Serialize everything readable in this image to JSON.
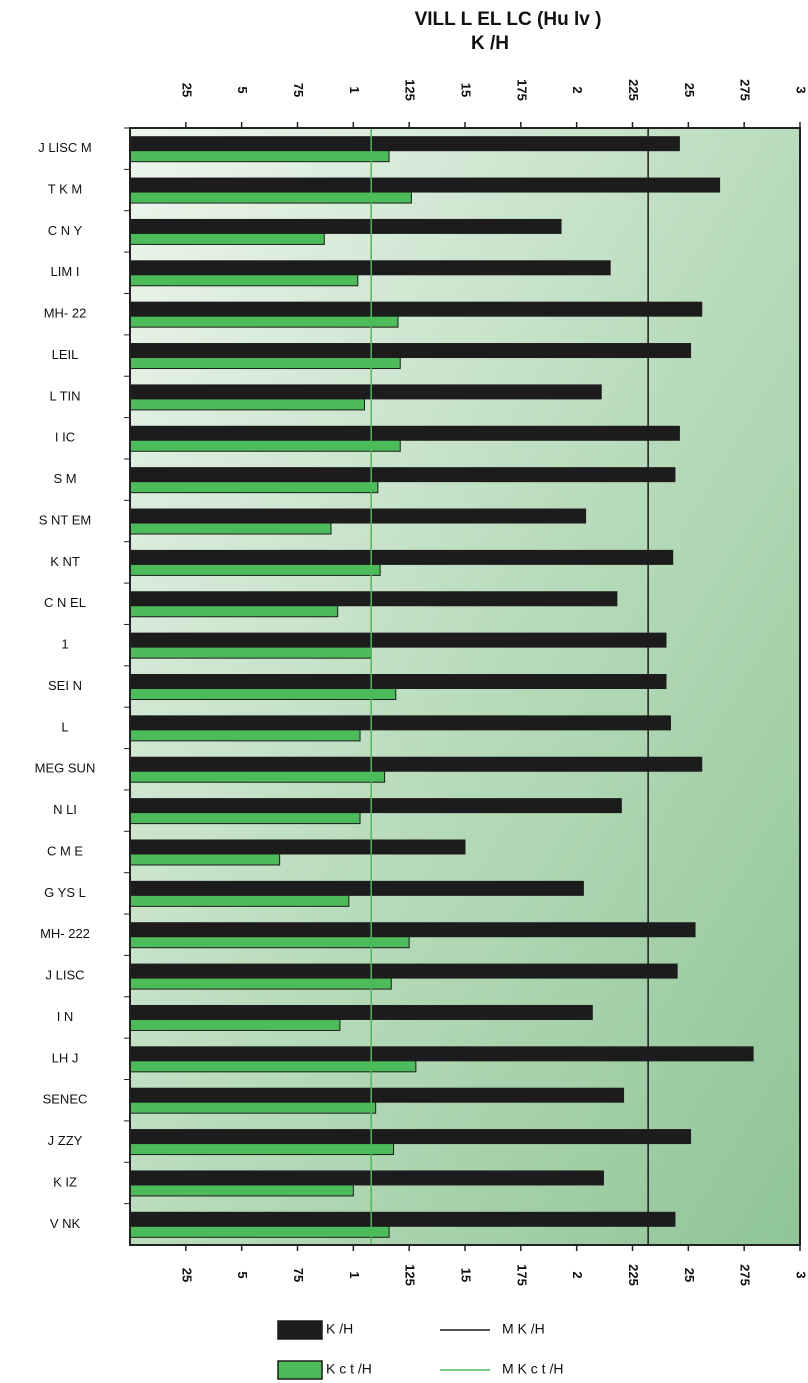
{
  "chart_data": {
    "type": "bar",
    "orientation": "horizontal",
    "title": "VILL  L      EL  LC     (Hu lv )",
    "subtitle": "K  /H",
    "categories": [
      "J LISC M",
      "T K M",
      "C N Y",
      "LIM I",
      "MH- 22",
      "LEIL",
      "L TIN",
      "I IC",
      "S M",
      "S NT EM",
      "K NT",
      "C N EL",
      "1",
      "SEI N",
      "L",
      "MEG SUN",
      "N LI",
      "C M E",
      "G YS L",
      "MH- 222",
      "J LISC",
      "I N",
      "LH J",
      "SENEC",
      "J ZZY",
      "K IZ",
      "V NK"
    ],
    "series": [
      {
        "name": "K /H",
        "color": "#1c1c1c",
        "values": [
          2.46,
          2.64,
          1.93,
          2.15,
          2.56,
          2.51,
          2.11,
          2.46,
          2.44,
          2.04,
          2.43,
          2.18,
          2.4,
          2.4,
          2.42,
          2.56,
          2.2,
          1.5,
          2.03,
          2.53,
          2.45,
          2.07,
          2.79,
          2.21,
          2.51,
          2.12,
          2.44
        ]
      },
      {
        "name": "K  c t /H",
        "color": "#4cbb5a",
        "values": [
          1.16,
          1.26,
          0.87,
          1.02,
          1.2,
          1.21,
          1.05,
          1.21,
          1.11,
          0.9,
          1.12,
          0.93,
          1.08,
          1.19,
          1.03,
          1.14,
          1.03,
          0.67,
          0.98,
          1.25,
          1.17,
          0.94,
          1.28,
          1.1,
          1.18,
          1.0,
          1.16
        ]
      }
    ],
    "mean_lines": [
      {
        "name": "M   K /H",
        "value": 2.32,
        "color": "#1c1c1c"
      },
      {
        "name": "M   K  c t /H",
        "value": 1.08,
        "color": "#4cbb5a"
      }
    ],
    "xlim": [
      0,
      3
    ],
    "xticks": [
      {
        "value": 0.25,
        "label": "25"
      },
      {
        "value": 0.5,
        "label": "5"
      },
      {
        "value": 0.75,
        "label": "75"
      },
      1,
      {
        "value": 1.25,
        "label": "125"
      },
      {
        "value": 1.5,
        "label": "15"
      },
      {
        "value": 1.75,
        "label": "175"
      },
      2,
      {
        "value": 2.25,
        "label": "225"
      },
      {
        "value": 2.5,
        "label": "25"
      },
      {
        "value": 2.75,
        "label": "275"
      },
      3
    ]
  }
}
